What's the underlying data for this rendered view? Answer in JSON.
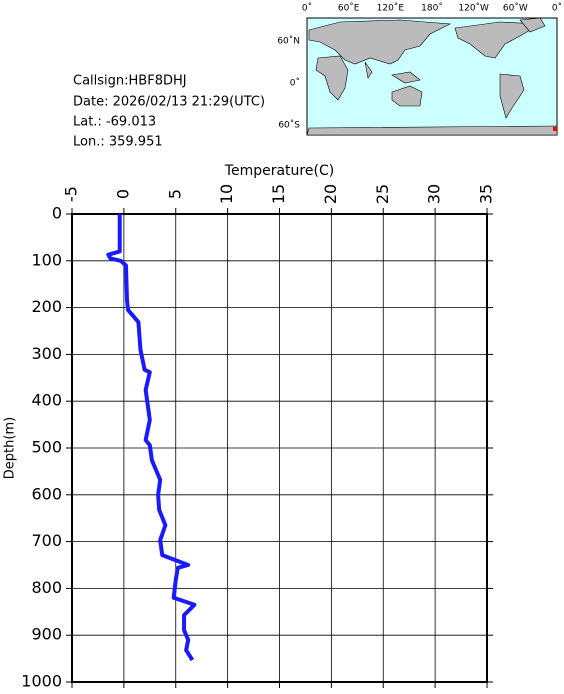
{
  "info": {
    "lines": [
      "Callsign:HBF8DHJ",
      "Date:  2026/02/13 21:29(UTC)",
      "Lat.:  -69.013",
      "Lon.:  359.951"
    ]
  },
  "map": {
    "lon_labels": [
      "0˚",
      "60˚E",
      "120˚E",
      "180˚",
      "120˚W",
      "60˚W",
      "0˚"
    ],
    "lat_labels": [
      "60˚N",
      "0˚",
      "60˚S"
    ]
  },
  "chart_data": {
    "type": "line",
    "x_label": "Temperature(C)",
    "y_label": "Depth(m)",
    "xlim": [
      -5,
      35
    ],
    "ylim": [
      0,
      1000
    ],
    "y_inverted": true,
    "grid": true,
    "xticks": [
      -5,
      0,
      5,
      10,
      15,
      20,
      25,
      30,
      35
    ],
    "yticks": [
      0,
      100,
      200,
      300,
      400,
      500,
      600,
      700,
      800,
      900,
      1000
    ],
    "color": "#1a1aff",
    "x": [
      -0.4,
      -0.4,
      -0.4,
      -1.5,
      -1.3,
      -0.3,
      0.2,
      0.3,
      0.4,
      1.4,
      1.6,
      2.0,
      2.5,
      2.1,
      2.3,
      2.5,
      2.1,
      2.5,
      2.7,
      3.1,
      3.5,
      3.3,
      3.4,
      4.0,
      3.5,
      3.7,
      6.2,
      5.2,
      5.0,
      4.8,
      6.8,
      5.8,
      5.8,
      6.2,
      6.0,
      6.6
    ],
    "values": [
      0,
      40,
      80,
      87,
      95,
      100,
      110,
      184,
      205,
      231,
      290,
      333,
      338,
      376,
      408,
      440,
      483,
      494,
      526,
      547,
      568,
      600,
      632,
      665,
      697,
      729,
      750,
      756,
      782,
      820,
      835,
      857,
      889,
      910,
      932,
      953
    ]
  }
}
